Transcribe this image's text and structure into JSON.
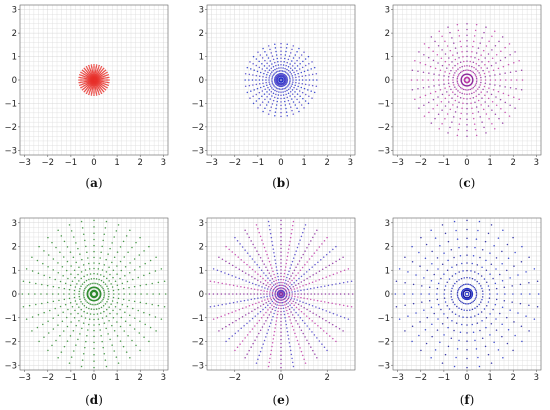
{
  "figure": {
    "layout": "2x3 grid of polar point plots",
    "colors": {
      "red": "#e8302a",
      "blue": "#1f2fc8",
      "blue_purple": "#4a3fc8",
      "purple": "#8a2a9c",
      "magenta": "#c23aa8",
      "green": "#2d8a2d",
      "navy": "#1a1a9a",
      "grid": "#dcdcdc",
      "axis_frame": "#666666"
    }
  },
  "chart_data": [
    {
      "panel_label": "a",
      "type": "scatter",
      "title": "",
      "xlabel": "",
      "ylabel": "",
      "xlim": [
        -3.2,
        3.2
      ],
      "ylim": [
        -3.2,
        3.2
      ],
      "xticks": [
        -3,
        -2,
        -1,
        0,
        1,
        2,
        3
      ],
      "yticks": [
        -3,
        -2,
        -1,
        0,
        1,
        2,
        3
      ],
      "grid": true,
      "legend": "none",
      "pattern": {
        "rays": 36,
        "max_radius": 0.65,
        "points_per_ray": 14,
        "inner_circles": [],
        "colors": [
          "#e8302a"
        ]
      }
    },
    {
      "panel_label": "b",
      "type": "scatter",
      "title": "",
      "xlabel": "",
      "ylabel": "",
      "xlim": [
        -3.2,
        3.2
      ],
      "ylim": [
        -3.2,
        3.2
      ],
      "xticks": [
        -3,
        -2,
        -1,
        0,
        1,
        2,
        3
      ],
      "yticks": [
        -3,
        -2,
        -1,
        0,
        1,
        2,
        3
      ],
      "grid": true,
      "legend": "none",
      "pattern": {
        "rays": 36,
        "max_radius": 1.55,
        "points_per_ray": 12,
        "inner_circles": [
          0.1,
          0.22
        ],
        "colors": [
          "#1f2fc8",
          "#4a3fc8"
        ]
      }
    },
    {
      "panel_label": "c",
      "type": "scatter",
      "title": "",
      "xlabel": "",
      "ylabel": "",
      "xlim": [
        -3.2,
        3.2
      ],
      "ylim": [
        -3.2,
        3.2
      ],
      "xticks": [
        -3,
        -2,
        -1,
        0,
        1,
        2,
        3
      ],
      "yticks": [
        -3,
        -2,
        -1,
        0,
        1,
        2,
        3
      ],
      "grid": true,
      "legend": "none",
      "pattern": {
        "rays": 36,
        "max_radius": 2.4,
        "points_per_ray": 12,
        "inner_circles": [
          0.12,
          0.25
        ],
        "colors": [
          "#c23aa8",
          "#8a2a9c"
        ]
      }
    },
    {
      "panel_label": "d",
      "type": "scatter",
      "title": "",
      "xlabel": "",
      "ylabel": "",
      "xlim": [
        -3.2,
        3.2
      ],
      "ylim": [
        -3.2,
        3.2
      ],
      "xticks": [
        -3,
        -2,
        -1,
        0,
        1,
        2,
        3
      ],
      "yticks": [
        -3,
        -2,
        -1,
        0,
        1,
        2,
        3
      ],
      "grid": true,
      "legend": "none",
      "pattern": {
        "rays": 36,
        "max_radius": 3.1,
        "points_per_ray": 14,
        "inner_circles": [
          0.16,
          0.3
        ],
        "colors": [
          "#2d8a2d"
        ]
      }
    },
    {
      "panel_label": "e",
      "type": "scatter",
      "title": "",
      "xlabel": "",
      "ylabel": "",
      "xlim": [
        -3.2,
        3.2
      ],
      "ylim": [
        -3.2,
        3.2
      ],
      "xticks": [
        -2,
        0,
        2
      ],
      "yticks": [
        -3,
        -2,
        -1,
        0,
        1,
        2,
        3
      ],
      "grid": true,
      "legend": "none",
      "pattern": {
        "rays": 36,
        "max_radius": 3.1,
        "points_per_ray": 22,
        "inner_circles": [
          0.08,
          0.14
        ],
        "colors": [
          "#8a2a9c",
          "#4a3fc8",
          "#c23aa8"
        ]
      }
    },
    {
      "panel_label": "f",
      "type": "scatter",
      "title": "",
      "xlabel": "",
      "ylabel": "",
      "xlim": [
        -3.2,
        3.2
      ],
      "ylim": [
        -3.2,
        3.2
      ],
      "xticks": [
        -3,
        -2,
        -1,
        0,
        1,
        2,
        3
      ],
      "yticks": [
        -3,
        -2,
        -1,
        0,
        1,
        2,
        3
      ],
      "grid": true,
      "legend": "none",
      "pattern": {
        "rays": 36,
        "max_radius": 3.1,
        "points_per_ray": 10,
        "inner_circles": [
          0.08,
          0.16,
          0.24
        ],
        "colors": [
          "#1f2fc8",
          "#1a1a9a"
        ]
      }
    }
  ]
}
